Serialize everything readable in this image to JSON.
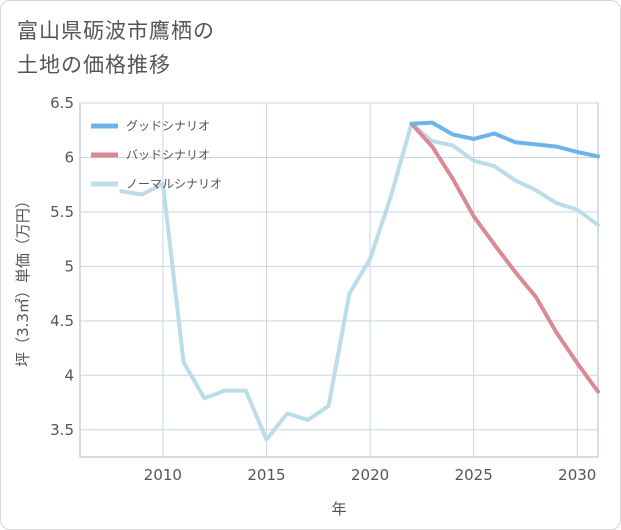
{
  "title": "富山県砺波市鷹栖の\n土地の価格推移",
  "chart_data": {
    "type": "line",
    "xlabel": "年",
    "ylabel": "坪（3.3㎡）単価（万円）",
    "xlim": [
      2006,
      2031
    ],
    "ylim": [
      3.25,
      6.5
    ],
    "xticks": [
      2010,
      2015,
      2020,
      2025,
      2030
    ],
    "yticks": [
      3.5,
      4,
      4.5,
      5,
      5.5,
      6,
      6.5
    ],
    "ytick_labels": [
      "3.5",
      "4",
      "4.5",
      "5",
      "5.5",
      "6",
      "6.5"
    ],
    "grid": true,
    "legend_position": "top-left",
    "series": [
      {
        "name": "グッドシナリオ",
        "color": "#6ab4ea",
        "x": [
          2022,
          2023,
          2024,
          2025,
          2026,
          2027,
          2028,
          2029,
          2030,
          2031
        ],
        "values": [
          6.31,
          6.32,
          6.21,
          6.17,
          6.22,
          6.14,
          6.12,
          6.1,
          6.05,
          6.01
        ]
      },
      {
        "name": "バッドシナリオ",
        "color": "#d98a93",
        "x": [
          2022,
          2023,
          2024,
          2025,
          2026,
          2027,
          2028,
          2029,
          2030,
          2031
        ],
        "values": [
          6.31,
          6.1,
          5.8,
          5.46,
          5.2,
          4.95,
          4.72,
          4.39,
          4.11,
          3.85
        ]
      },
      {
        "name": "ノーマルシナリオ",
        "color": "#bcdcea",
        "x": [
          2008,
          2009,
          2010,
          2011,
          2012,
          2013,
          2014,
          2015,
          2016,
          2017,
          2018,
          2019,
          2020,
          2021,
          2022,
          2023,
          2024,
          2025,
          2026,
          2027,
          2028,
          2029,
          2030,
          2031
        ],
        "values": [
          5.69,
          5.66,
          5.76,
          4.12,
          3.79,
          3.86,
          3.86,
          3.41,
          3.65,
          3.59,
          3.72,
          4.75,
          5.07,
          5.64,
          6.31,
          6.15,
          6.11,
          5.97,
          5.92,
          5.79,
          5.7,
          5.58,
          5.52,
          5.38
        ]
      }
    ]
  }
}
